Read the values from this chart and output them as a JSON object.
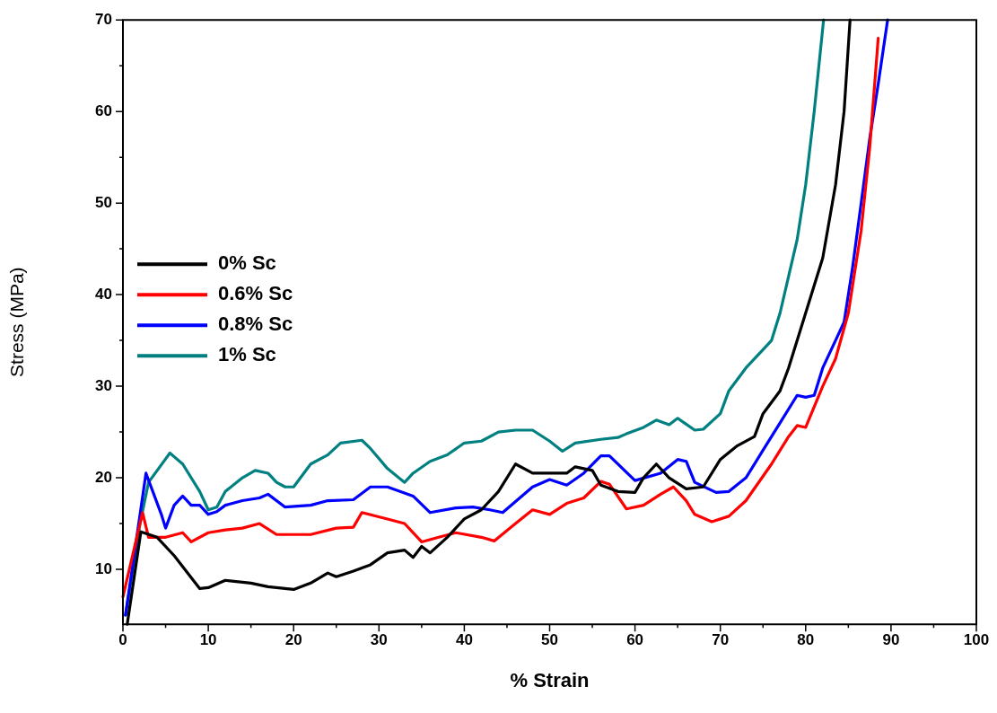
{
  "chart_data": {
    "type": "line",
    "xlabel": "% Strain",
    "ylabel": "Stress (MPa)",
    "xlim": [
      0,
      100
    ],
    "xticks": [
      0,
      10,
      20,
      30,
      40,
      50,
      60,
      70,
      80,
      90,
      100
    ],
    "ylim": [
      4,
      70
    ],
    "yticks": [
      10,
      20,
      30,
      40,
      50,
      60,
      70
    ],
    "grid": false,
    "legend": "left",
    "marker": "none",
    "line_style": "solid",
    "series": [
      {
        "name": "0% Sc",
        "color": "#000000",
        "x": [
          0.5,
          2.1,
          4,
          6,
          9,
          10,
          12,
          15,
          17,
          20,
          22,
          24,
          25,
          27,
          29,
          31,
          33,
          34,
          35,
          36,
          38,
          40,
          42,
          44,
          46,
          48,
          52,
          53,
          55,
          56,
          58,
          60,
          61,
          62.5,
          64,
          66,
          68,
          70,
          72,
          74,
          75,
          77,
          78,
          80,
          82,
          83.5,
          84.5,
          85.2
        ],
        "values": [
          4,
          14.1,
          13.5,
          11.5,
          7.9,
          8,
          8.8,
          8.5,
          8.1,
          7.8,
          8.5,
          9.6,
          9.2,
          9.8,
          10.5,
          11.8,
          12.1,
          11.3,
          12.5,
          11.8,
          13.5,
          15.5,
          16.5,
          18.5,
          21.5,
          20.5,
          20.5,
          21.2,
          20.8,
          19.2,
          18.5,
          18.4,
          20,
          21.5,
          20,
          18.8,
          19,
          22,
          23.5,
          24.5,
          27,
          29.5,
          32,
          38,
          44,
          52,
          60,
          70
        ]
      },
      {
        "name": "0.6% Sc",
        "color": "#ff0000",
        "x": [
          0,
          2.3,
          3,
          5,
          7,
          8,
          10,
          12,
          14,
          16,
          18,
          22,
          25,
          27,
          28,
          31,
          33,
          35,
          37,
          39,
          42,
          43.5,
          46,
          48,
          50,
          52,
          54,
          56,
          57,
          59,
          61,
          63,
          64.5,
          66,
          67,
          69,
          71,
          73,
          76,
          78,
          79,
          80,
          82,
          83.5,
          85,
          86.5,
          87.5,
          88.5
        ],
        "values": [
          7,
          16.2,
          13.5,
          13.5,
          14,
          13,
          14,
          14.3,
          14.5,
          15,
          13.8,
          13.8,
          14.5,
          14.6,
          16.2,
          15.5,
          15,
          13,
          13.5,
          14,
          13.5,
          13.1,
          15,
          16.5,
          16,
          17.2,
          17.8,
          19.6,
          19.3,
          16.6,
          17,
          18.2,
          19,
          17.5,
          16,
          15.2,
          15.8,
          17.5,
          21.5,
          24.5,
          25.7,
          25.5,
          30,
          33,
          38,
          47,
          56,
          68
        ]
      },
      {
        "name": "0.8% Sc",
        "color": "#0000ff",
        "x": [
          0.3,
          2.7,
          3.5,
          4.5,
          5,
          6,
          7,
          8,
          9,
          10,
          11,
          12,
          14,
          16,
          17,
          19,
          22,
          24,
          27,
          29,
          31,
          34,
          36,
          39,
          41,
          43,
          44.5,
          48,
          50,
          52,
          54,
          56,
          57,
          60,
          63,
          65,
          66,
          67,
          69.5,
          71,
          73,
          75,
          77,
          79,
          80,
          81,
          82,
          83.5,
          84.5,
          85.5,
          86.5,
          87.5,
          88.5,
          89.6
        ],
        "values": [
          5,
          20.5,
          18.5,
          16,
          14.5,
          17,
          18,
          17,
          17,
          16,
          16.3,
          17,
          17.5,
          17.8,
          18.2,
          16.8,
          17,
          17.5,
          17.6,
          19,
          19,
          18,
          16.2,
          16.7,
          16.8,
          16.5,
          16.2,
          19,
          19.8,
          19.2,
          20.5,
          22.4,
          22.4,
          19.7,
          20.5,
          22,
          21.8,
          19.5,
          18.4,
          18.5,
          20,
          23,
          26,
          29,
          28.8,
          29,
          32,
          35,
          37,
          43,
          50,
          57,
          63,
          70
        ]
      },
      {
        "name": "1% Sc",
        "color": "#008080",
        "x": [
          0.3,
          2,
          3,
          5.5,
          7,
          9,
          10,
          11,
          12,
          14,
          15.5,
          17,
          18,
          19,
          20,
          22,
          24,
          25.5,
          28,
          29,
          31,
          33,
          34,
          36,
          38,
          40,
          42,
          44,
          46,
          48,
          50,
          51.5,
          53,
          56,
          58,
          59,
          61,
          62.5,
          64,
          65,
          67,
          68,
          70,
          71,
          73,
          75,
          76,
          77,
          78,
          79,
          80,
          81,
          82.1
        ],
        "values": [
          5,
          15,
          19.5,
          22.7,
          21.5,
          18.5,
          16.5,
          16.8,
          18.5,
          20,
          20.8,
          20.5,
          19.5,
          19,
          19,
          21.5,
          22.5,
          23.8,
          24.1,
          23.2,
          21,
          19.5,
          20.5,
          21.8,
          22.5,
          23.8,
          24,
          25,
          25.2,
          25.2,
          24,
          22.9,
          23.8,
          24.2,
          24.4,
          24.8,
          25.5,
          26.3,
          25.8,
          26.5,
          25.2,
          25.3,
          27,
          29.5,
          32,
          34,
          35,
          38,
          42,
          46,
          52,
          60,
          70
        ]
      }
    ]
  }
}
